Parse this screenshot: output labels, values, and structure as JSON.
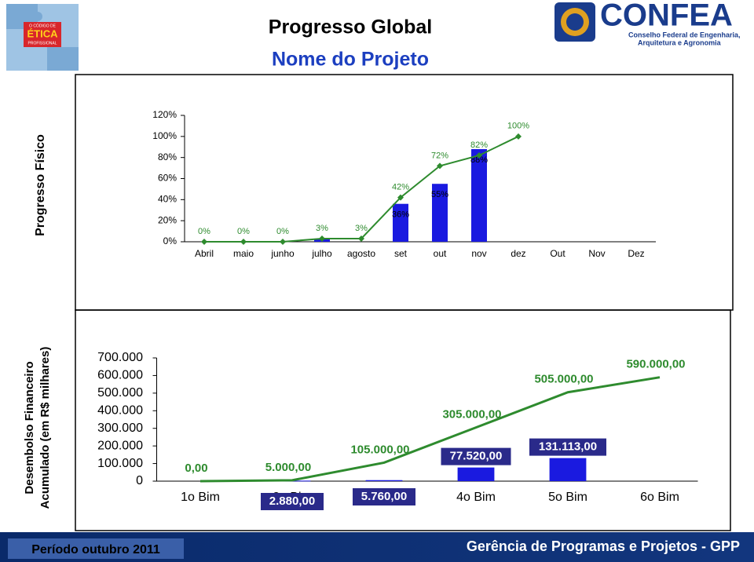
{
  "header": {
    "title": "Progresso Global",
    "subtitle": "Nome do Projeto",
    "left_logo": [
      "O CÓDIGO DE",
      "ÉTICA",
      "PROFISSIONAL"
    ],
    "right_logo": {
      "name": "CONFEA",
      "lines": [
        "Conselho Federal de Engenharia,",
        "Arquitetura e Agronomia"
      ]
    }
  },
  "chart_data": [
    {
      "type": "combo",
      "y_label": "Progresso Físico",
      "categories": [
        "Abril",
        "maio",
        "junho",
        "julho",
        "agosto",
        "set",
        "out",
        "nov",
        "dez",
        "Out",
        "Nov",
        "Dez"
      ],
      "ylim": [
        0,
        120
      ],
      "yticks": [
        {
          "value": 0,
          "label": "0%"
        },
        {
          "value": 20,
          "label": "20%"
        },
        {
          "value": 40,
          "label": "40%"
        },
        {
          "value": 60,
          "label": "60%"
        },
        {
          "value": 80,
          "label": "80%"
        },
        {
          "value": 100,
          "label": "100%"
        },
        {
          "value": 120,
          "label": "120%"
        }
      ],
      "series": [
        {
          "type": "bar",
          "color": "#1a1ae0",
          "values": [
            null,
            null,
            null,
            3,
            null,
            36,
            55,
            88,
            null,
            null,
            null,
            null
          ],
          "value_labels": [
            null,
            null,
            null,
            null,
            null,
            "36%",
            "55%",
            "88%",
            null,
            null,
            null,
            null
          ]
        },
        {
          "type": "line",
          "color": "#2e8b2e",
          "values": [
            0,
            0,
            0,
            3,
            3,
            42,
            72,
            82,
            100,
            null,
            null,
            null
          ],
          "value_labels": [
            "0%",
            "0%",
            "0%",
            "3%",
            "3%",
            "42%",
            "72%",
            "82%",
            "100%",
            null,
            null,
            null
          ]
        }
      ]
    },
    {
      "type": "combo",
      "y_label": [
        "Desembolso Financeiro",
        "Acumulado (em R$ milhares)"
      ],
      "categories": [
        "1o Bim",
        "2o Bim",
        "3o Bim",
        "4o Bim",
        "5o Bim",
        "6o Bim"
      ],
      "ylim": [
        0,
        700000
      ],
      "yticks": [
        0,
        {
          "value": 100000,
          "label": "100.000"
        },
        {
          "value": 200000,
          "label": "200.000"
        },
        {
          "value": 300000,
          "label": "300.000"
        },
        {
          "value": 400000,
          "label": "400.000"
        },
        {
          "value": 500000,
          "label": "500.000"
        },
        {
          "value": 600000,
          "label": "600.000"
        },
        {
          "value": 700000,
          "label": "700.000"
        }
      ],
      "series": [
        {
          "type": "bar",
          "color": "#1a1ae0",
          "values": [
            null,
            2880,
            5760,
            77520,
            131113,
            null
          ],
          "value_labels": [
            null,
            "2.880,00",
            "5.760,00",
            "77.520,00",
            "131.113,00",
            null
          ]
        },
        {
          "type": "line",
          "color": "#2e8b2e",
          "values": [
            0,
            5000,
            105000,
            305000,
            505000,
            590000
          ],
          "value_labels": [
            "0,00",
            "5.000,00",
            "105.000,00",
            "305.000,00",
            "505.000,00",
            "590.000,00"
          ]
        }
      ]
    }
  ],
  "footer": {
    "period": "Período  outubro 2011",
    "department": "Gerência de Programas e Projetos - GPP"
  }
}
